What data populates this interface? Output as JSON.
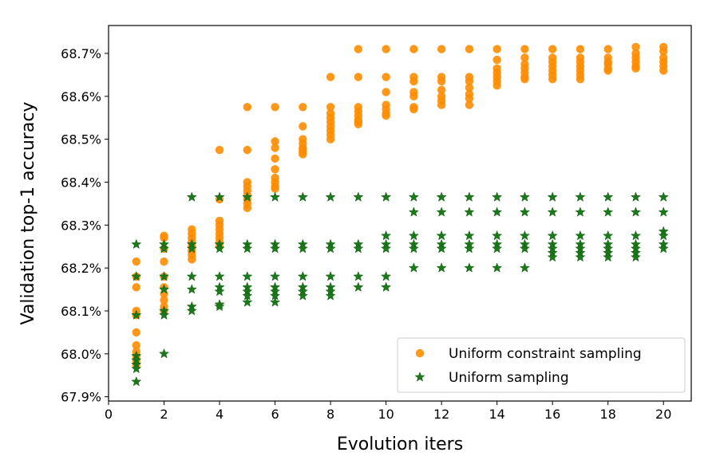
{
  "chart_data": {
    "type": "scatter",
    "title": "",
    "xlabel": "Evolution iters",
    "ylabel": "Validation top-1 accuracy",
    "xlim": [
      0,
      21
    ],
    "ylim": [
      67.89,
      68.765
    ],
    "xticks": [
      0,
      2,
      4,
      6,
      8,
      10,
      12,
      14,
      16,
      18,
      20
    ],
    "yticks": [
      67.9,
      68.0,
      68.1,
      68.2,
      68.3,
      68.4,
      68.5,
      68.6,
      68.7
    ],
    "ytick_labels": [
      "67.9%",
      "68.0%",
      "68.1%",
      "68.2%",
      "68.3%",
      "68.4%",
      "68.5%",
      "68.6%",
      "68.7%"
    ],
    "grid": false,
    "legend_position": "lower-right",
    "series": [
      {
        "name": "Uniform constraint sampling",
        "marker": "circle",
        "color": "#ff8c00",
        "points": [
          [
            1,
            68.215
          ],
          [
            1,
            68.18
          ],
          [
            1,
            68.155
          ],
          [
            1,
            68.1
          ],
          [
            1,
            68.09
          ],
          [
            1,
            68.05
          ],
          [
            1,
            68.02
          ],
          [
            1,
            68.005
          ],
          [
            1,
            67.995
          ],
          [
            1,
            67.985
          ],
          [
            1,
            67.975
          ],
          [
            2,
            68.275
          ],
          [
            2,
            68.27
          ],
          [
            2,
            68.245
          ],
          [
            2,
            68.215
          ],
          [
            2,
            68.18
          ],
          [
            2,
            68.155
          ],
          [
            2,
            68.14
          ],
          [
            2,
            68.125
          ],
          [
            2,
            68.11
          ],
          [
            2,
            68.1
          ],
          [
            3,
            68.29
          ],
          [
            3,
            68.28
          ],
          [
            3,
            68.27
          ],
          [
            3,
            68.26
          ],
          [
            3,
            68.25
          ],
          [
            3,
            68.24
          ],
          [
            3,
            68.23
          ],
          [
            3,
            68.22
          ],
          [
            4,
            68.475
          ],
          [
            4,
            68.36
          ],
          [
            4,
            68.31
          ],
          [
            4,
            68.3
          ],
          [
            4,
            68.29
          ],
          [
            4,
            68.28
          ],
          [
            4,
            68.27
          ],
          [
            4,
            68.26
          ],
          [
            4,
            68.25
          ],
          [
            5,
            68.575
          ],
          [
            5,
            68.475
          ],
          [
            5,
            68.4
          ],
          [
            5,
            68.39
          ],
          [
            5,
            68.38
          ],
          [
            5,
            68.37
          ],
          [
            5,
            68.36
          ],
          [
            5,
            68.35
          ],
          [
            5,
            68.34
          ],
          [
            6,
            68.575
          ],
          [
            6,
            68.495
          ],
          [
            6,
            68.48
          ],
          [
            6,
            68.455
          ],
          [
            6,
            68.43
          ],
          [
            6,
            68.41
          ],
          [
            6,
            68.4
          ],
          [
            6,
            68.39
          ],
          [
            6,
            68.385
          ],
          [
            7,
            68.575
          ],
          [
            7,
            68.53
          ],
          [
            7,
            68.5
          ],
          [
            7,
            68.49
          ],
          [
            7,
            68.48
          ],
          [
            7,
            68.475
          ],
          [
            7,
            68.47
          ],
          [
            7,
            68.465
          ],
          [
            8,
            68.645
          ],
          [
            8,
            68.575
          ],
          [
            8,
            68.56
          ],
          [
            8,
            68.55
          ],
          [
            8,
            68.54
          ],
          [
            8,
            68.53
          ],
          [
            8,
            68.52
          ],
          [
            8,
            68.51
          ],
          [
            8,
            68.5
          ],
          [
            9,
            68.71
          ],
          [
            9,
            68.645
          ],
          [
            9,
            68.575
          ],
          [
            9,
            68.565
          ],
          [
            9,
            68.555
          ],
          [
            9,
            68.545
          ],
          [
            9,
            68.54
          ],
          [
            9,
            68.535
          ],
          [
            10,
            68.71
          ],
          [
            10,
            68.645
          ],
          [
            10,
            68.61
          ],
          [
            10,
            68.58
          ],
          [
            10,
            68.57
          ],
          [
            10,
            68.56
          ],
          [
            10,
            68.555
          ],
          [
            11,
            68.71
          ],
          [
            11,
            68.645
          ],
          [
            11,
            68.635
          ],
          [
            11,
            68.61
          ],
          [
            11,
            68.6
          ],
          [
            11,
            68.575
          ],
          [
            11,
            68.57
          ],
          [
            12,
            68.71
          ],
          [
            12,
            68.645
          ],
          [
            12,
            68.635
          ],
          [
            12,
            68.615
          ],
          [
            12,
            68.6
          ],
          [
            12,
            68.59
          ],
          [
            12,
            68.58
          ],
          [
            13,
            68.71
          ],
          [
            13,
            68.645
          ],
          [
            13,
            68.635
          ],
          [
            13,
            68.62
          ],
          [
            13,
            68.605
          ],
          [
            13,
            68.595
          ],
          [
            13,
            68.58
          ],
          [
            14,
            68.71
          ],
          [
            14,
            68.685
          ],
          [
            14,
            68.665
          ],
          [
            14,
            68.655
          ],
          [
            14,
            68.645
          ],
          [
            14,
            68.635
          ],
          [
            14,
            68.625
          ],
          [
            15,
            68.71
          ],
          [
            15,
            68.69
          ],
          [
            15,
            68.675
          ],
          [
            15,
            68.665
          ],
          [
            15,
            68.655
          ],
          [
            15,
            68.645
          ],
          [
            15,
            68.64
          ],
          [
            16,
            68.71
          ],
          [
            16,
            68.69
          ],
          [
            16,
            68.68
          ],
          [
            16,
            68.67
          ],
          [
            16,
            68.66
          ],
          [
            16,
            68.65
          ],
          [
            16,
            68.64
          ],
          [
            17,
            68.71
          ],
          [
            17,
            68.69
          ],
          [
            17,
            68.68
          ],
          [
            17,
            68.67
          ],
          [
            17,
            68.66
          ],
          [
            17,
            68.65
          ],
          [
            17,
            68.64
          ],
          [
            18,
            68.71
          ],
          [
            18,
            68.69
          ],
          [
            18,
            68.68
          ],
          [
            18,
            68.675
          ],
          [
            18,
            68.665
          ],
          [
            18,
            68.66
          ],
          [
            19,
            68.715
          ],
          [
            19,
            68.7
          ],
          [
            19,
            68.69
          ],
          [
            19,
            68.68
          ],
          [
            19,
            68.67
          ],
          [
            19,
            68.665
          ],
          [
            20,
            68.715
          ],
          [
            20,
            68.705
          ],
          [
            20,
            68.69
          ],
          [
            20,
            68.68
          ],
          [
            20,
            68.67
          ],
          [
            20,
            68.66
          ]
        ]
      },
      {
        "name": "Uniform sampling",
        "marker": "star",
        "color": "#1a7a1a",
        "points": [
          [
            1,
            68.255
          ],
          [
            1,
            68.18
          ],
          [
            1,
            68.09
          ],
          [
            1,
            67.995
          ],
          [
            1,
            67.985
          ],
          [
            1,
            67.975
          ],
          [
            1,
            67.965
          ],
          [
            1,
            67.935
          ],
          [
            2,
            68.255
          ],
          [
            2,
            68.245
          ],
          [
            2,
            68.18
          ],
          [
            2,
            68.15
          ],
          [
            2,
            68.1
          ],
          [
            2,
            68.09
          ],
          [
            2,
            68.0
          ],
          [
            3,
            68.365
          ],
          [
            3,
            68.255
          ],
          [
            3,
            68.245
          ],
          [
            3,
            68.18
          ],
          [
            3,
            68.15
          ],
          [
            3,
            68.11
          ],
          [
            3,
            68.1
          ],
          [
            4,
            68.365
          ],
          [
            4,
            68.255
          ],
          [
            4,
            68.245
          ],
          [
            4,
            68.18
          ],
          [
            4,
            68.155
          ],
          [
            4,
            68.145
          ],
          [
            4,
            68.115
          ],
          [
            4,
            68.11
          ],
          [
            5,
            68.365
          ],
          [
            5,
            68.255
          ],
          [
            5,
            68.245
          ],
          [
            5,
            68.18
          ],
          [
            5,
            68.155
          ],
          [
            5,
            68.145
          ],
          [
            5,
            68.135
          ],
          [
            5,
            68.12
          ],
          [
            6,
            68.365
          ],
          [
            6,
            68.255
          ],
          [
            6,
            68.245
          ],
          [
            6,
            68.18
          ],
          [
            6,
            68.155
          ],
          [
            6,
            68.145
          ],
          [
            6,
            68.135
          ],
          [
            6,
            68.12
          ],
          [
            7,
            68.365
          ],
          [
            7,
            68.255
          ],
          [
            7,
            68.245
          ],
          [
            7,
            68.18
          ],
          [
            7,
            68.155
          ],
          [
            7,
            68.145
          ],
          [
            7,
            68.135
          ],
          [
            8,
            68.365
          ],
          [
            8,
            68.255
          ],
          [
            8,
            68.245
          ],
          [
            8,
            68.18
          ],
          [
            8,
            68.155
          ],
          [
            8,
            68.145
          ],
          [
            8,
            68.135
          ],
          [
            9,
            68.365
          ],
          [
            9,
            68.255
          ],
          [
            9,
            68.245
          ],
          [
            9,
            68.18
          ],
          [
            9,
            68.155
          ],
          [
            10,
            68.365
          ],
          [
            10,
            68.275
          ],
          [
            10,
            68.255
          ],
          [
            10,
            68.245
          ],
          [
            10,
            68.18
          ],
          [
            10,
            68.155
          ],
          [
            11,
            68.365
          ],
          [
            11,
            68.33
          ],
          [
            11,
            68.275
          ],
          [
            11,
            68.255
          ],
          [
            11,
            68.245
          ],
          [
            11,
            68.2
          ],
          [
            12,
            68.365
          ],
          [
            12,
            68.33
          ],
          [
            12,
            68.275
          ],
          [
            12,
            68.255
          ],
          [
            12,
            68.245
          ],
          [
            12,
            68.2
          ],
          [
            13,
            68.365
          ],
          [
            13,
            68.33
          ],
          [
            13,
            68.275
          ],
          [
            13,
            68.255
          ],
          [
            13,
            68.245
          ],
          [
            13,
            68.2
          ],
          [
            14,
            68.365
          ],
          [
            14,
            68.33
          ],
          [
            14,
            68.275
          ],
          [
            14,
            68.255
          ],
          [
            14,
            68.245
          ],
          [
            14,
            68.2
          ],
          [
            15,
            68.365
          ],
          [
            15,
            68.33
          ],
          [
            15,
            68.275
          ],
          [
            15,
            68.255
          ],
          [
            15,
            68.245
          ],
          [
            15,
            68.2
          ],
          [
            16,
            68.365
          ],
          [
            16,
            68.33
          ],
          [
            16,
            68.275
          ],
          [
            16,
            68.255
          ],
          [
            16,
            68.245
          ],
          [
            16,
            68.235
          ],
          [
            16,
            68.225
          ],
          [
            17,
            68.365
          ],
          [
            17,
            68.33
          ],
          [
            17,
            68.275
          ],
          [
            17,
            68.255
          ],
          [
            17,
            68.245
          ],
          [
            17,
            68.235
          ],
          [
            17,
            68.225
          ],
          [
            18,
            68.365
          ],
          [
            18,
            68.33
          ],
          [
            18,
            68.275
          ],
          [
            18,
            68.255
          ],
          [
            18,
            68.245
          ],
          [
            18,
            68.235
          ],
          [
            18,
            68.225
          ],
          [
            19,
            68.365
          ],
          [
            19,
            68.33
          ],
          [
            19,
            68.275
          ],
          [
            19,
            68.255
          ],
          [
            19,
            68.245
          ],
          [
            19,
            68.235
          ],
          [
            19,
            68.225
          ],
          [
            20,
            68.365
          ],
          [
            20,
            68.33
          ],
          [
            20,
            68.285
          ],
          [
            20,
            68.275
          ],
          [
            20,
            68.255
          ],
          [
            20,
            68.245
          ]
        ]
      }
    ]
  }
}
